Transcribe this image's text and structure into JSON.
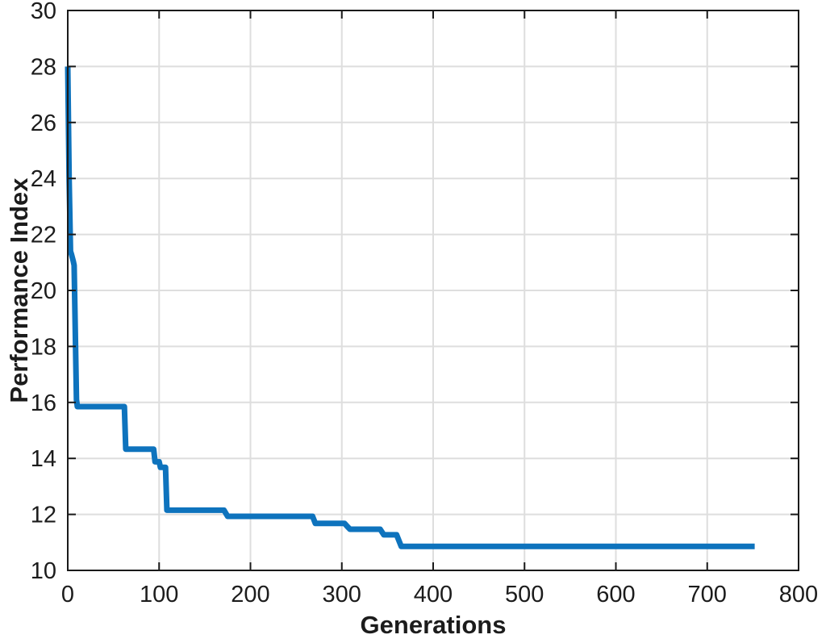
{
  "figure": {
    "kind": "matlab-style line plot",
    "background": "#ffffff"
  },
  "chart_data": {
    "type": "line",
    "title": "",
    "xlabel": "Generations",
    "ylabel": "Performance Index",
    "xlim": [
      0,
      800
    ],
    "ylim": [
      10,
      30
    ],
    "x_ticks": [
      0,
      100,
      200,
      300,
      400,
      500,
      600,
      700,
      800
    ],
    "y_ticks": [
      10,
      12,
      14,
      16,
      18,
      20,
      22,
      24,
      26,
      28,
      30
    ],
    "grid": true,
    "legend": false,
    "line_color": "#0E73BD",
    "line_width": 7,
    "grid_color": "#DEDEDE",
    "frame_color": "#1a1a1a",
    "text_color": "#1c1c1c",
    "series": [
      {
        "name": "performance-index-vs-generations",
        "points": [
          [
            0,
            28.0
          ],
          [
            1.5,
            24.0
          ],
          [
            3,
            21.4
          ],
          [
            4,
            21.3
          ],
          [
            6,
            21.05
          ],
          [
            7,
            20.9
          ],
          [
            9.5,
            16.1
          ],
          [
            10.5,
            15.85
          ],
          [
            62,
            15.85
          ],
          [
            63.5,
            14.33
          ],
          [
            94,
            14.33
          ],
          [
            95.5,
            13.88
          ],
          [
            100,
            13.88
          ],
          [
            101.5,
            13.68
          ],
          [
            107,
            13.68
          ],
          [
            108.5,
            12.15
          ],
          [
            171,
            12.15
          ],
          [
            175,
            11.93
          ],
          [
            268,
            11.93
          ],
          [
            271,
            11.68
          ],
          [
            303,
            11.68
          ],
          [
            306,
            11.57
          ],
          [
            309,
            11.47
          ],
          [
            342,
            11.47
          ],
          [
            346,
            11.27
          ],
          [
            360,
            11.27
          ],
          [
            365,
            10.86
          ],
          [
            752,
            10.86
          ]
        ]
      }
    ]
  }
}
